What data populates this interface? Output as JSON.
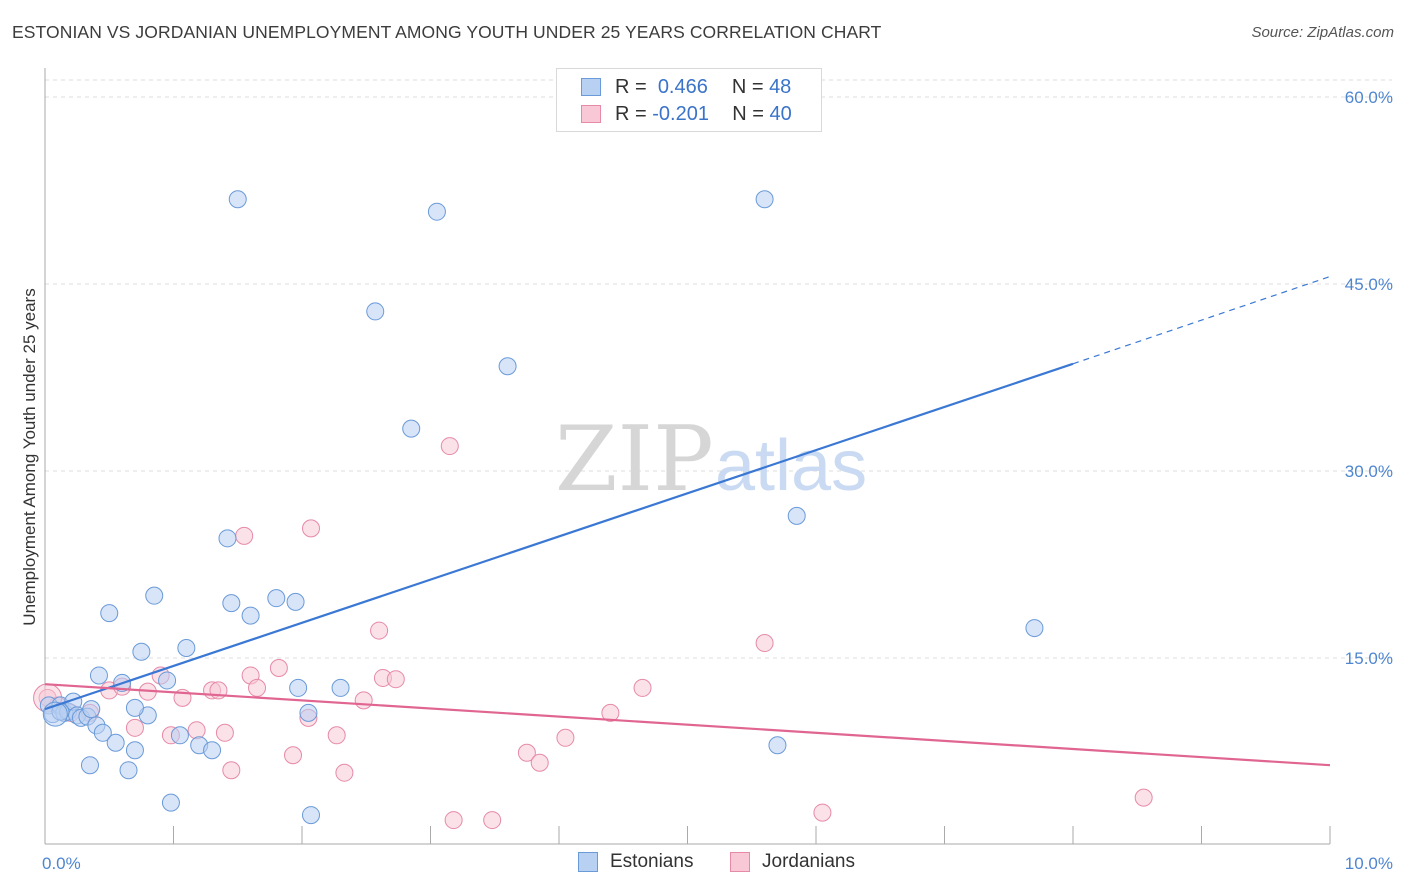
{
  "title": "ESTONIAN VS JORDANIAN UNEMPLOYMENT AMONG YOUTH UNDER 25 YEARS CORRELATION CHART",
  "source": "Source: ZipAtlas.com",
  "watermark": {
    "zip": "ZIP",
    "atlas": "atlas"
  },
  "legend": {
    "rows": [
      {
        "r_label": "R =",
        "r_value": "0.466",
        "n_label": "N =",
        "n_value": "48"
      },
      {
        "r_label": "R =",
        "r_value": "-0.201",
        "n_label": "N =",
        "n_value": "40"
      }
    ]
  },
  "colors": {
    "estonians_fill": "#b8d0f2",
    "estonians_stroke": "#6a9ad8",
    "estonians_line": "#3a78d4",
    "jordanians_fill": "#f8c8d6",
    "jordanians_stroke": "#e68aa8",
    "jordanians_line": "#e06590",
    "axis_text": "#4f86d0",
    "grid": "#dcdcdc"
  },
  "chart_data": {
    "type": "scatter",
    "title": "ESTONIAN VS JORDANIAN UNEMPLOYMENT AMONG YOUTH UNDER 25 YEARS CORRELATION CHART",
    "xlabel": "",
    "ylabel": "Unemployment Among Youth under 25 years",
    "xlim": [
      0,
      10
    ],
    "ylim": [
      0,
      60
    ],
    "x_tick_labels": [
      "0.0%",
      "10.0%"
    ],
    "y_ticks": [
      15,
      30,
      45,
      60
    ],
    "y_tick_labels": [
      "15.0%",
      "30.0%",
      "45.0%",
      "60.0%"
    ],
    "grid": true,
    "legend_position": "top-center",
    "series": [
      {
        "name": "Estonians",
        "r": 0.466,
        "n": 48,
        "trend": {
          "x": [
            0.0,
            8.0
          ],
          "y": [
            10.9,
            38.6
          ],
          "dashed_to": [
            10.0,
            45.6
          ]
        },
        "points": [
          [
            0.03,
            11.2
          ],
          [
            0.06,
            10.5
          ],
          [
            0.12,
            11.2
          ],
          [
            0.15,
            10.6
          ],
          [
            0.18,
            10.7
          ],
          [
            0.22,
            11.5
          ],
          [
            0.25,
            10.4
          ],
          [
            0.28,
            10.2
          ],
          [
            0.33,
            10.3
          ],
          [
            0.36,
            10.9
          ],
          [
            0.4,
            9.6
          ],
          [
            0.42,
            13.6
          ],
          [
            0.45,
            9.0
          ],
          [
            0.55,
            8.2
          ],
          [
            0.6,
            13.0
          ],
          [
            0.65,
            6.0
          ],
          [
            0.7,
            7.6
          ],
          [
            0.75,
            15.5
          ],
          [
            0.8,
            10.4
          ],
          [
            0.85,
            20.0
          ],
          [
            0.95,
            13.2
          ],
          [
            1.2,
            8.0
          ],
          [
            1.3,
            7.6
          ],
          [
            1.45,
            19.4
          ],
          [
            1.6,
            18.4
          ],
          [
            1.8,
            19.8
          ],
          [
            1.95,
            19.5
          ],
          [
            2.05,
            10.6
          ],
          [
            2.3,
            12.6
          ],
          [
            2.57,
            42.8
          ],
          [
            2.85,
            33.4
          ],
          [
            3.05,
            50.8
          ],
          [
            3.6,
            38.4
          ],
          [
            5.6,
            51.8
          ],
          [
            5.7,
            8.0
          ],
          [
            5.85,
            26.4
          ],
          [
            7.7,
            17.4
          ],
          [
            0.35,
            6.4
          ],
          [
            0.5,
            18.6
          ],
          [
            0.7,
            11.0
          ],
          [
            1.1,
            15.8
          ],
          [
            1.05,
            8.8
          ],
          [
            0.98,
            3.4
          ],
          [
            1.5,
            51.8
          ],
          [
            1.42,
            24.6
          ],
          [
            1.97,
            12.6
          ],
          [
            2.07,
            2.4
          ],
          [
            0.12,
            10.7
          ]
        ]
      },
      {
        "name": "Jordanians",
        "r": -0.201,
        "n": 40,
        "trend": {
          "x": [
            0.0,
            10.0
          ],
          "y": [
            12.9,
            6.4
          ]
        },
        "points": [
          [
            0.02,
            11.8
          ],
          [
            0.1,
            11.2
          ],
          [
            0.2,
            10.6
          ],
          [
            0.35,
            10.6
          ],
          [
            0.5,
            12.4
          ],
          [
            0.6,
            12.7
          ],
          [
            0.7,
            9.4
          ],
          [
            0.8,
            12.3
          ],
          [
            0.9,
            13.6
          ],
          [
            0.98,
            8.8
          ],
          [
            1.07,
            11.8
          ],
          [
            1.18,
            9.2
          ],
          [
            1.3,
            12.4
          ],
          [
            1.4,
            9.0
          ],
          [
            1.45,
            6.0
          ],
          [
            1.55,
            24.8
          ],
          [
            1.6,
            13.6
          ],
          [
            1.65,
            12.6
          ],
          [
            1.82,
            14.2
          ],
          [
            1.93,
            7.2
          ],
          [
            2.05,
            10.2
          ],
          [
            2.07,
            25.4
          ],
          [
            2.27,
            8.8
          ],
          [
            2.33,
            5.8
          ],
          [
            2.48,
            11.6
          ],
          [
            2.6,
            17.2
          ],
          [
            2.63,
            13.4
          ],
          [
            2.73,
            13.3
          ],
          [
            3.15,
            32.0
          ],
          [
            3.18,
            2.0
          ],
          [
            3.48,
            2.0
          ],
          [
            3.75,
            7.4
          ],
          [
            3.85,
            6.6
          ],
          [
            4.05,
            8.6
          ],
          [
            4.4,
            10.6
          ],
          [
            4.65,
            12.6
          ],
          [
            5.6,
            16.2
          ],
          [
            6.05,
            2.6
          ],
          [
            8.55,
            3.8
          ],
          [
            1.35,
            12.4
          ]
        ]
      }
    ]
  }
}
